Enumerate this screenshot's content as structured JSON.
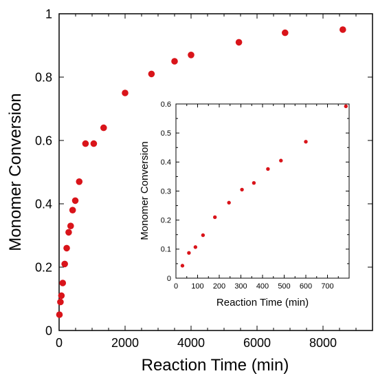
{
  "chart_data": [
    {
      "type": "scatter",
      "xlabel": "Reaction Time (min)",
      "ylabel": "Monomer Conversion",
      "xlim": [
        0,
        9500
      ],
      "ylim": [
        0,
        1
      ],
      "xticks": [
        0,
        2000,
        4000,
        6000,
        8000
      ],
      "yticks": [
        0,
        0.2,
        0.4,
        0.6,
        0.8,
        1
      ],
      "xtick_labels": [
        "0",
        "2000",
        "4000",
        "6000",
        "8000"
      ],
      "ytick_labels": [
        "0",
        "0.2",
        "0.4",
        "0.6",
        "0.8",
        "1"
      ],
      "grid": false,
      "marker_color": "#d9141a",
      "series": [
        {
          "x": [
            10,
            40,
            70,
            110,
            170,
            230,
            290,
            350,
            410,
            490,
            610,
            800,
            1050,
            1350,
            2000,
            2800,
            3500,
            4000,
            5450,
            6850,
            8600
          ],
          "y": [
            0.05,
            0.09,
            0.11,
            0.15,
            0.21,
            0.26,
            0.31,
            0.33,
            0.38,
            0.41,
            0.47,
            0.59,
            0.59,
            0.64,
            0.75,
            0.81,
            0.85,
            0.87,
            0.91,
            0.94,
            0.95
          ]
        }
      ]
    },
    {
      "type": "scatter",
      "xlabel": "Reaction Time (min)",
      "ylabel": "Monomer Conversion",
      "xlim": [
        0,
        800
      ],
      "ylim": [
        0,
        0.6
      ],
      "xticks": [
        0,
        100,
        200,
        300,
        400,
        500,
        600,
        700
      ],
      "yticks": [
        0,
        0.1,
        0.2,
        0.3,
        0.4,
        0.5,
        0.6
      ],
      "xtick_labels": [
        "0",
        "100",
        "200",
        "300",
        "400",
        "500",
        "600",
        "700"
      ],
      "ytick_labels": [
        "0",
        "0.1",
        "0.2",
        "0.3",
        "0.4",
        "0.5",
        "0.6"
      ],
      "grid": false,
      "marker_color": "#d9141a",
      "series": [
        {
          "x": [
            30,
            60,
            90,
            125,
            180,
            245,
            305,
            360,
            425,
            485,
            600,
            785
          ],
          "y": [
            0.043,
            0.087,
            0.107,
            0.148,
            0.21,
            0.26,
            0.305,
            0.328,
            0.376,
            0.405,
            0.47,
            0.592
          ]
        }
      ]
    }
  ]
}
